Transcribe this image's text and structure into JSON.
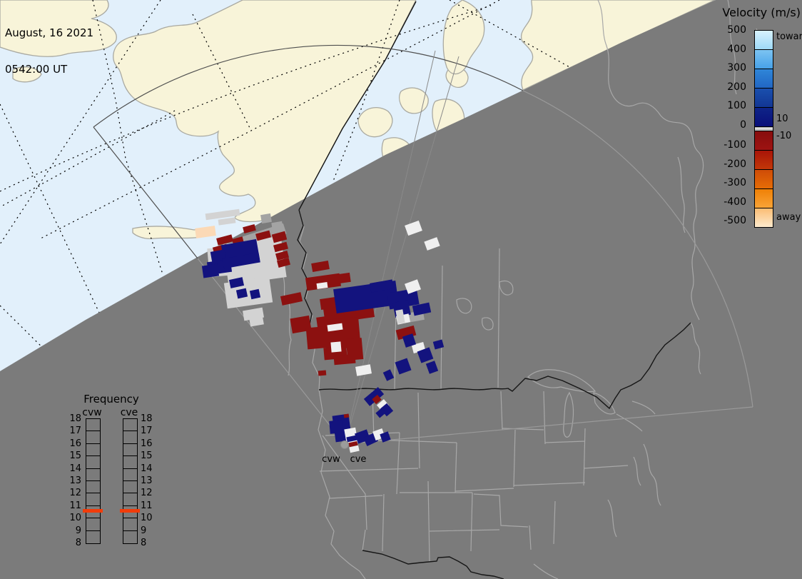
{
  "meta": {
    "date_line": "August, 16 2021",
    "time_line": "0542:00 UT"
  },
  "velocity_legend": {
    "title": "Velocity (m/s)",
    "toward_label": "toward",
    "away_label": "away",
    "zero_band_high": "10",
    "zero_band_low": "-10",
    "upper_ticks": [
      "500",
      "400",
      "300",
      "200",
      "100",
      "0"
    ],
    "lower_ticks": [
      "-100",
      "-200",
      "-300",
      "-400",
      "-500"
    ],
    "toward_segment_gradients": [
      [
        "#d8f2fd",
        "#9edaf8"
      ],
      [
        "#7cc4f2",
        "#47a1e8"
      ],
      [
        "#2f86d8",
        "#2166c4"
      ],
      [
        "#1a4fae",
        "#123694"
      ],
      [
        "#0e2488",
        "#0a0f7a"
      ]
    ],
    "away_segment_gradients": [
      [
        "#870d0d",
        "#9e1312"
      ],
      [
        "#a81408",
        "#c23708"
      ],
      [
        "#cf4c07",
        "#e56c06"
      ],
      [
        "#ef8006",
        "#f9a437"
      ],
      [
        "#fbbd74",
        "#fdeacd"
      ]
    ]
  },
  "frequency_legend": {
    "title": "Frequency",
    "columns": [
      {
        "id": "cvw",
        "label": "cvw"
      },
      {
        "id": "cve",
        "label": "cve"
      }
    ],
    "ticks": [
      "18",
      "17",
      "16",
      "15",
      "14",
      "13",
      "12",
      "11",
      "10",
      "9",
      "8"
    ],
    "marker_color": "#f23c0a"
  },
  "radar_sites": {
    "west_label": "cvw",
    "east_label": "cve"
  },
  "colors": {
    "night_gray": "#7b7b7b",
    "day_water": "#e2f0fb",
    "day_land": "#f8f4d9",
    "day_coast": "#a9a9a1",
    "night_outline": "#a8a8a8",
    "dark_border": "#151515",
    "fan_day": "#4f4f4f",
    "fan_night": "#9a9a9a",
    "cell_palette": {
      "R": "#8c1110",
      "B": "#13137e",
      "W": "#efefef",
      "G": "#d3d3d3",
      "M": "#a3a3a3",
      "P": "#fbd9b6"
    }
  },
  "cells": [
    [
      "G",
      288,
      296,
      48,
      9,
      -8
    ],
    [
      "G",
      306,
      306,
      24,
      8,
      -8
    ],
    [
      "M",
      366,
      300,
      14,
      12,
      -10
    ],
    [
      "M",
      381,
      311,
      15,
      10,
      -10
    ],
    [
      "M",
      327,
      324,
      74,
      15,
      -18
    ],
    [
      "G",
      316,
      336,
      82,
      58,
      -8
    ],
    [
      "G",
      316,
      392,
      64,
      36,
      -8
    ],
    [
      "G",
      292,
      347,
      27,
      40,
      -5
    ],
    [
      "G",
      341,
      433,
      28,
      14,
      -10
    ],
    [
      "G",
      350,
      444,
      19,
      12,
      -10
    ],
    [
      "P",
      274,
      318,
      28,
      14,
      -8
    ],
    [
      "R",
      341,
      316,
      17,
      9,
      -15
    ],
    [
      "R",
      359,
      325,
      20,
      10,
      -15
    ],
    [
      "R",
      304,
      331,
      22,
      10,
      -15
    ],
    [
      "R",
      326,
      333,
      15,
      9,
      -15
    ],
    [
      "R",
      382,
      326,
      19,
      12,
      -15
    ],
    [
      "R",
      384,
      341,
      19,
      10,
      -15
    ],
    [
      "R",
      387,
      353,
      17,
      10,
      -15
    ],
    [
      "R",
      389,
      363,
      17,
      10,
      -15
    ],
    [
      "R",
      299,
      344,
      20,
      11,
      -15
    ],
    [
      "R",
      309,
      361,
      17,
      12,
      -15
    ],
    [
      "R",
      394,
      412,
      29,
      13,
      -12
    ],
    [
      "B",
      312,
      339,
      50,
      29,
      -10
    ],
    [
      "B",
      296,
      351,
      20,
      16,
      -10
    ],
    [
      "B",
      291,
      365,
      33,
      18,
      -8
    ],
    [
      "B",
      284,
      371,
      22,
      17,
      -8
    ],
    [
      "B",
      312,
      358,
      52,
      14,
      -10
    ],
    [
      "B",
      322,
      390,
      19,
      12,
      -12
    ],
    [
      "B",
      332,
      405,
      14,
      12,
      -12
    ],
    [
      "B",
      351,
      406,
      13,
      12,
      -12
    ],
    [
      "R",
      437,
      367,
      24,
      12,
      -10
    ],
    [
      "R",
      429,
      386,
      48,
      18,
      -8
    ],
    [
      "W",
      444,
      396,
      15,
      8,
      -8
    ],
    [
      "R",
      460,
      384,
      31,
      13,
      -8
    ],
    [
      "R",
      408,
      444,
      27,
      21,
      -10
    ],
    [
      "R",
      449,
      417,
      29,
      15,
      -8
    ],
    [
      "R",
      454,
      429,
      50,
      18,
      -8
    ],
    [
      "R",
      444,
      442,
      40,
      15,
      -8
    ],
    [
      "R",
      482,
      429,
      42,
      18,
      -8
    ],
    [
      "R",
      456,
      446,
      48,
      42,
      -5
    ],
    [
      "R",
      430,
      458,
      32,
      30,
      -5
    ],
    [
      "R",
      454,
      486,
      32,
      17,
      -5
    ],
    [
      "R",
      468,
      497,
      30,
      13,
      -5
    ],
    [
      "R",
      486,
      474,
      22,
      30,
      -5
    ],
    [
      "R",
      446,
      519,
      11,
      7,
      -5
    ],
    [
      "W",
      459,
      454,
      21,
      9,
      -8
    ],
    [
      "W",
      464,
      479,
      14,
      14,
      -5
    ],
    [
      "W",
      499,
      512,
      21,
      13,
      -10
    ],
    [
      "M",
      569,
      437,
      25,
      13,
      -10
    ],
    [
      "B",
      469,
      399,
      88,
      34,
      -8
    ],
    [
      "B",
      519,
      394,
      32,
      13,
      -10
    ],
    [
      "B",
      544,
      407,
      42,
      23,
      -10
    ],
    [
      "B",
      552,
      422,
      22,
      21,
      -12
    ],
    [
      "B",
      579,
      426,
      24,
      14,
      -12
    ],
    [
      "R",
      556,
      459,
      26,
      14,
      -15
    ],
    [
      "W",
      556,
      441,
      18,
      12,
      -12
    ],
    [
      "W",
      578,
      481,
      17,
      12,
      -15
    ],
    [
      "B",
      566,
      469,
      15,
      16,
      -18
    ],
    [
      "B",
      587,
      489,
      18,
      17,
      -20
    ],
    [
      "B",
      599,
      507,
      13,
      15,
      -20
    ],
    [
      "B",
      539,
      519,
      11,
      13,
      -25
    ],
    [
      "B",
      556,
      504,
      18,
      18,
      -20
    ],
    [
      "B",
      608,
      477,
      13,
      11,
      -15
    ],
    [
      "W",
      569,
      312,
      21,
      15,
      -20
    ],
    [
      "W",
      596,
      335,
      19,
      13,
      -20
    ],
    [
      "W",
      569,
      394,
      19,
      15,
      -20
    ],
    [
      "G",
      556,
      434,
      10,
      19,
      -10
    ],
    [
      "B",
      511,
      549,
      26,
      13,
      -40
    ],
    [
      "R",
      523,
      555,
      10,
      9,
      -40
    ],
    [
      "W",
      530,
      562,
      13,
      11,
      -40
    ],
    [
      "B",
      536,
      567,
      12,
      14,
      -40
    ],
    [
      "B",
      528,
      574,
      11,
      9,
      -40
    ],
    [
      "B",
      468,
      581,
      23,
      37,
      -8
    ],
    [
      "B",
      462,
      589,
      18,
      18,
      -5
    ],
    [
      "R",
      482,
      580,
      7,
      5,
      -8
    ],
    [
      "W",
      484,
      600,
      16,
      21,
      -10
    ],
    [
      "B",
      486,
      611,
      14,
      7,
      -12
    ],
    [
      "R",
      489,
      619,
      12,
      6,
      -12
    ],
    [
      "W",
      490,
      625,
      13,
      8,
      -12
    ],
    [
      "B",
      499,
      604,
      18,
      15,
      -20
    ],
    [
      "B",
      511,
      609,
      17,
      13,
      -25
    ],
    [
      "W",
      524,
      602,
      14,
      13,
      -20
    ],
    [
      "B",
      534,
      606,
      12,
      12,
      -20
    ]
  ]
}
